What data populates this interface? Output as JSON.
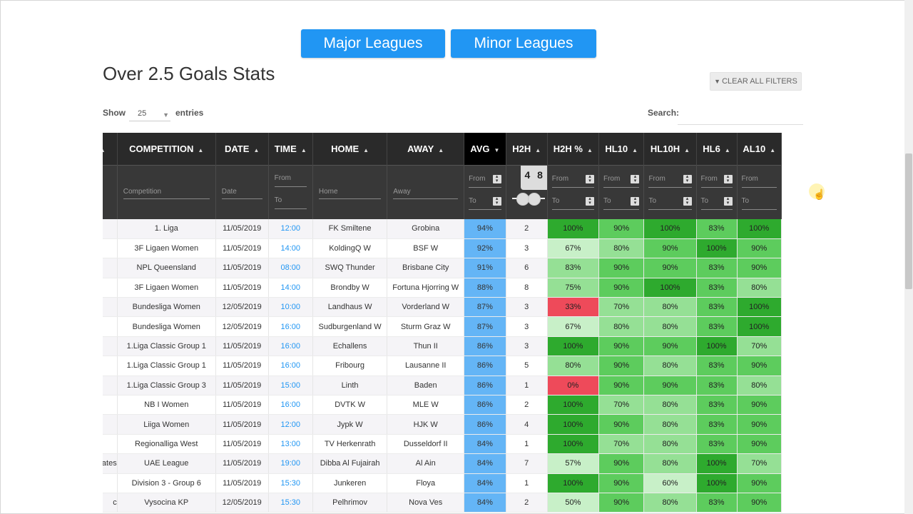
{
  "buttons": {
    "major": "Major Leagues",
    "minor": "Minor Leagues"
  },
  "title": "Over 2.5 Goals Stats",
  "clear_filters": {
    "icon": "funnel-icon",
    "label": "CLEAR ALL FILTERS"
  },
  "length": {
    "show": "Show",
    "value": "25",
    "entries": "entries"
  },
  "search": {
    "label": "Search:",
    "value": ""
  },
  "columns": [
    "",
    "COMPETITION",
    "DATE",
    "TIME",
    "HOME",
    "AWAY",
    "AVG",
    "H2H",
    "H2H %",
    "HL10",
    "HL10H",
    "HL6",
    "AL10"
  ],
  "filters": {
    "competition": "Competition",
    "date": "Date",
    "time_from": "From",
    "time_to": "To",
    "home": "Home",
    "away": "Away",
    "from": "From",
    "to": "To",
    "h2h_slider": "4 8"
  },
  "colors": {
    "accent": "#2196f3",
    "avg_cell": "#64b5f6",
    "dark_green": "#2eaa2e",
    "mid_green": "#5dcc5d",
    "light_green": "#95e095",
    "pale_green": "#c8f0c8",
    "red": "#ee4a5a"
  },
  "rows": [
    {
      "c0": "",
      "competition": "1. Liga",
      "date": "11/05/2019",
      "time": "12:00",
      "home": "FK Smiltene",
      "away": "Grobina",
      "avg": "94%",
      "h2h": "2",
      "h2hp": "100%",
      "hl10": "90%",
      "hl10h": "100%",
      "hl6": "83%",
      "al10": "100%"
    },
    {
      "c0": "",
      "competition": "3F Ligaen Women",
      "date": "11/05/2019",
      "time": "14:00",
      "home": "KoldingQ W",
      "away": "BSF W",
      "avg": "92%",
      "h2h": "3",
      "h2hp": "67%",
      "hl10": "80%",
      "hl10h": "90%",
      "hl6": "100%",
      "al10": "90%"
    },
    {
      "c0": "",
      "competition": "NPL Queensland",
      "date": "11/05/2019",
      "time": "08:00",
      "home": "SWQ Thunder",
      "away": "Brisbane City",
      "avg": "91%",
      "h2h": "6",
      "h2hp": "83%",
      "hl10": "90%",
      "hl10h": "90%",
      "hl6": "83%",
      "al10": "90%"
    },
    {
      "c0": "",
      "competition": "3F Ligaen Women",
      "date": "11/05/2019",
      "time": "14:00",
      "home": "Brondby W",
      "away": "Fortuna Hjorring W",
      "avg": "88%",
      "h2h": "8",
      "h2hp": "75%",
      "hl10": "90%",
      "hl10h": "100%",
      "hl6": "83%",
      "al10": "80%"
    },
    {
      "c0": "",
      "competition": "Bundesliga Women",
      "date": "12/05/2019",
      "time": "10:00",
      "home": "Landhaus W",
      "away": "Vorderland W",
      "avg": "87%",
      "h2h": "3",
      "h2hp": "33%",
      "hl10": "70%",
      "hl10h": "80%",
      "hl6": "83%",
      "al10": "100%"
    },
    {
      "c0": "",
      "competition": "Bundesliga Women",
      "date": "12/05/2019",
      "time": "16:00",
      "home": "Sudburgenland W",
      "away": "Sturm Graz W",
      "avg": "87%",
      "h2h": "3",
      "h2hp": "67%",
      "hl10": "80%",
      "hl10h": "80%",
      "hl6": "83%",
      "al10": "100%"
    },
    {
      "c0": "",
      "competition": "1.Liga Classic Group 1",
      "date": "11/05/2019",
      "time": "16:00",
      "home": "Echallens",
      "away": "Thun II",
      "avg": "86%",
      "h2h": "3",
      "h2hp": "100%",
      "hl10": "90%",
      "hl10h": "90%",
      "hl6": "100%",
      "al10": "70%"
    },
    {
      "c0": "",
      "competition": "1.Liga Classic Group 1",
      "date": "11/05/2019",
      "time": "16:00",
      "home": "Fribourg",
      "away": "Lausanne II",
      "avg": "86%",
      "h2h": "5",
      "h2hp": "80%",
      "hl10": "90%",
      "hl10h": "80%",
      "hl6": "83%",
      "al10": "90%"
    },
    {
      "c0": "",
      "competition": "1.Liga Classic Group 3",
      "date": "11/05/2019",
      "time": "15:00",
      "home": "Linth",
      "away": "Baden",
      "avg": "86%",
      "h2h": "1",
      "h2hp": "0%",
      "hl10": "90%",
      "hl10h": "90%",
      "hl6": "83%",
      "al10": "80%"
    },
    {
      "c0": "",
      "competition": "NB I Women",
      "date": "11/05/2019",
      "time": "16:00",
      "home": "DVTK W",
      "away": "MLE W",
      "avg": "86%",
      "h2h": "2",
      "h2hp": "100%",
      "hl10": "70%",
      "hl10h": "80%",
      "hl6": "83%",
      "al10": "90%"
    },
    {
      "c0": "",
      "competition": "Liiga Women",
      "date": "11/05/2019",
      "time": "12:00",
      "home": "Jypk W",
      "away": "HJK W",
      "avg": "86%",
      "h2h": "4",
      "h2hp": "100%",
      "hl10": "90%",
      "hl10h": "80%",
      "hl6": "83%",
      "al10": "90%"
    },
    {
      "c0": "",
      "competition": "Regionalliga West",
      "date": "11/05/2019",
      "time": "13:00",
      "home": "TV Herkenrath",
      "away": "Dusseldorf II",
      "avg": "84%",
      "h2h": "1",
      "h2hp": "100%",
      "hl10": "70%",
      "hl10h": "80%",
      "hl6": "83%",
      "al10": "90%"
    },
    {
      "c0": "ates",
      "competition": "UAE League",
      "date": "11/05/2019",
      "time": "19:00",
      "home": "Dibba Al Fujairah",
      "away": "Al Ain",
      "avg": "84%",
      "h2h": "7",
      "h2hp": "57%",
      "hl10": "90%",
      "hl10h": "80%",
      "hl6": "100%",
      "al10": "70%"
    },
    {
      "c0": "",
      "competition": "Division 3 - Group 6",
      "date": "11/05/2019",
      "time": "15:30",
      "home": "Junkeren",
      "away": "Floya",
      "avg": "84%",
      "h2h": "1",
      "h2hp": "100%",
      "hl10": "90%",
      "hl10h": "60%",
      "hl6": "100%",
      "al10": "90%"
    },
    {
      "c0": "c",
      "competition": "Vysocina KP",
      "date": "12/05/2019",
      "time": "15:30",
      "home": "Pelhrimov",
      "away": "Nova Ves",
      "avg": "84%",
      "h2h": "2",
      "h2hp": "50%",
      "hl10": "90%",
      "hl10h": "80%",
      "hl6": "83%",
      "al10": "90%"
    }
  ]
}
